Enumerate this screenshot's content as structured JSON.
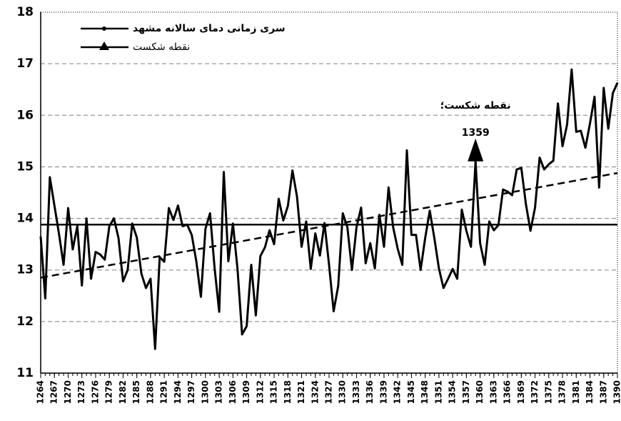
{
  "chart_data": {
    "type": "line",
    "legend": "top-left",
    "grid": true,
    "x": [
      1264,
      1265,
      1266,
      1267,
      1268,
      1269,
      1270,
      1271,
      1272,
      1273,
      1274,
      1275,
      1276,
      1277,
      1278,
      1279,
      1280,
      1281,
      1282,
      1283,
      1284,
      1285,
      1286,
      1287,
      1288,
      1289,
      1290,
      1291,
      1292,
      1293,
      1294,
      1295,
      1296,
      1297,
      1298,
      1299,
      1300,
      1301,
      1302,
      1303,
      1304,
      1305,
      1306,
      1307,
      1308,
      1309,
      1310,
      1311,
      1312,
      1313,
      1314,
      1315,
      1316,
      1317,
      1318,
      1319,
      1320,
      1321,
      1322,
      1323,
      1324,
      1325,
      1326,
      1327,
      1328,
      1329,
      1330,
      1331,
      1332,
      1333,
      1334,
      1335,
      1336,
      1337,
      1338,
      1339,
      1340,
      1341,
      1342,
      1343,
      1344,
      1345,
      1346,
      1347,
      1348,
      1349,
      1350,
      1351,
      1352,
      1353,
      1354,
      1355,
      1356,
      1357,
      1358,
      1359,
      1360,
      1361,
      1362,
      1363,
      1364,
      1365,
      1366,
      1367,
      1368,
      1369,
      1370,
      1371,
      1372,
      1373,
      1374,
      1375,
      1376,
      1377,
      1378,
      1379,
      1380,
      1381,
      1382,
      1383,
      1384,
      1385,
      1386,
      1387,
      1388,
      1389,
      1390
    ],
    "series": [
      {
        "name": "سری زمانی دمای سالانه مشهد",
        "color": "#000000",
        "values": [
          13.65,
          12.45,
          14.8,
          14.25,
          13.7,
          13.1,
          14.2,
          13.4,
          13.85,
          12.7,
          14.0,
          12.83,
          13.35,
          13.3,
          13.2,
          13.85,
          14.0,
          13.62,
          12.78,
          13.0,
          13.9,
          13.63,
          12.93,
          12.65,
          12.83,
          11.47,
          13.25,
          13.16,
          14.2,
          13.97,
          14.25,
          13.85,
          13.88,
          13.68,
          13.17,
          12.48,
          13.8,
          14.1,
          13.03,
          12.19,
          14.9,
          13.17,
          13.9,
          13.02,
          11.75,
          11.91,
          13.1,
          12.12,
          13.27,
          13.44,
          13.77,
          13.5,
          14.38,
          13.96,
          14.24,
          14.93,
          14.42,
          13.45,
          13.94,
          13.02,
          13.71,
          13.28,
          13.91,
          13.1,
          12.2,
          12.69,
          14.1,
          13.83,
          13.0,
          13.83,
          14.21,
          13.13,
          13.52,
          13.03,
          14.07,
          13.45,
          14.6,
          13.83,
          13.41,
          13.1,
          15.32,
          13.68,
          13.68,
          13.0,
          13.62,
          14.15,
          13.62,
          13.03,
          12.65,
          12.83,
          13.02,
          12.83,
          14.17,
          13.76,
          13.45,
          15.1,
          13.52,
          13.1,
          13.94,
          13.77,
          13.87,
          14.56,
          14.52,
          14.45,
          14.95,
          14.98,
          14.28,
          13.76,
          14.21,
          15.18,
          14.95,
          15.05,
          15.12,
          16.23,
          15.4,
          15.82,
          16.89,
          15.68,
          15.7,
          15.37,
          15.84,
          16.36,
          14.6,
          16.53,
          15.74,
          16.43,
          16.63
        ]
      }
    ],
    "break_point": {
      "name": "نقطه شکست",
      "x": 1359,
      "value": 15.55,
      "label": "نقطه شکست؛"
    },
    "mean_line": 13.88,
    "trend_line": [
      12.85,
      14.88
    ],
    "xlim": [
      1264,
      1390
    ],
    "xticks": [
      1264,
      1267,
      1270,
      1273,
      1276,
      1279,
      1282,
      1285,
      1288,
      1291,
      1294,
      1297,
      1300,
      1303,
      1306,
      1309,
      1312,
      1315,
      1318,
      1321,
      1324,
      1327,
      1330,
      1333,
      1336,
      1339,
      1342,
      1345,
      1348,
      1351,
      1354,
      1357,
      1360,
      1363,
      1366,
      1369,
      1372,
      1375,
      1378,
      1381,
      1384,
      1387,
      1390
    ],
    "ylim": [
      11,
      18
    ],
    "yticks": [
      11,
      12,
      13,
      14,
      15,
      16,
      17,
      18
    ]
  }
}
